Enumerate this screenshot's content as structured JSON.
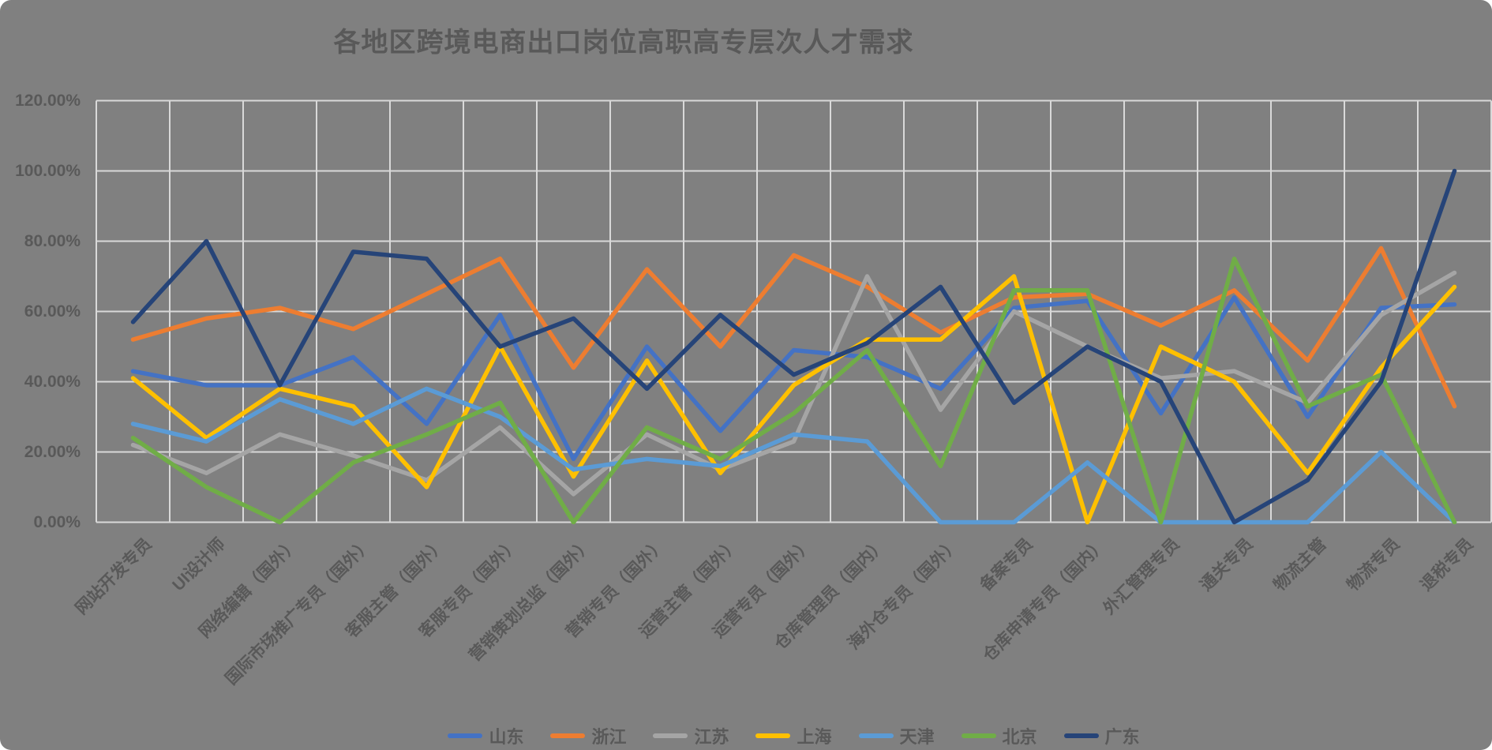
{
  "colors": {
    "background": "#808080",
    "grid": "#D9D9D9",
    "text": "#595959"
  },
  "chart_data": {
    "type": "line",
    "title": "各地区跨境电商出口岗位高职高专层次人才需求",
    "grid": true,
    "legend_position": "bottom",
    "xlabel": "",
    "ylabel": "",
    "y_axis": {
      "min": 0,
      "max": 120,
      "step": 20,
      "tick_labels": [
        "0.00%",
        "20.00%",
        "40.00%",
        "60.00%",
        "80.00%",
        "100.00%",
        "120.00%"
      ]
    },
    "categories": [
      "网站开发专员",
      "UI设计师",
      "网络编辑（国外）",
      "国际市场推广专员（国外）",
      "客服主管（国外）",
      "客服专员（国外）",
      "营销策划总监（国外）",
      "营销专员（国外）",
      "运营主管（国外）",
      "运营专员（国外）",
      "仓库管理员（国内）",
      "海外仓专员（国外）",
      "备案专员",
      "仓库申请专员（国内）",
      "外汇管理专员",
      "通关专员",
      "物流主管",
      "物流专员",
      "退税专员"
    ],
    "series": [
      {
        "id": "shandong",
        "name": "山东",
        "color": "#4472C4",
        "values": [
          43,
          39,
          39,
          47,
          28,
          59,
          18,
          50,
          26,
          49,
          47,
          38,
          61,
          63,
          31,
          64,
          30,
          61,
          62
        ]
      },
      {
        "id": "zhejiang",
        "name": "浙江",
        "color": "#ED7D31",
        "values": [
          52,
          58,
          61,
          55,
          65,
          75,
          44,
          72,
          50,
          76,
          67,
          54,
          64,
          65,
          56,
          66,
          46,
          78,
          33
        ]
      },
      {
        "id": "jiangsu",
        "name": "江苏",
        "color": "#A5A5A5",
        "values": [
          22,
          14,
          25,
          19,
          12,
          27,
          8,
          25,
          15,
          23,
          70,
          32,
          60,
          50,
          41,
          43,
          34,
          59,
          71
        ]
      },
      {
        "id": "shanghai",
        "name": "上海",
        "color": "#FFC000",
        "values": [
          41,
          24,
          38,
          33,
          10,
          50,
          13,
          46,
          14,
          39,
          52,
          52,
          70,
          0,
          50,
          40,
          14,
          44,
          67
        ]
      },
      {
        "id": "tianjin",
        "name": "天津",
        "color": "#5B9BD5",
        "values": [
          28,
          23,
          35,
          28,
          38,
          30,
          15,
          18,
          16,
          25,
          23,
          0,
          0,
          17,
          0,
          0,
          0,
          20,
          0
        ]
      },
      {
        "id": "beijing",
        "name": "北京",
        "color": "#70AD47",
        "values": [
          24,
          10,
          0,
          17,
          25,
          34,
          0,
          27,
          18,
          31,
          49,
          16,
          66,
          66,
          0,
          75,
          33,
          42,
          0
        ]
      },
      {
        "id": "guangdong",
        "name": "广东",
        "color": "#264478",
        "values": [
          57,
          80,
          39,
          77,
          75,
          50,
          58,
          38,
          59,
          42,
          51,
          67,
          34,
          50,
          40,
          0,
          12,
          40,
          100
        ]
      }
    ]
  }
}
